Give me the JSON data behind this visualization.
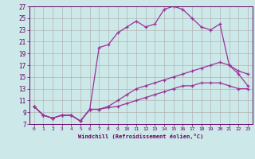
{
  "xlabel": "Windchill (Refroidissement éolien,°C)",
  "bg_color": "#cce8e8",
  "line_color": "#993399",
  "text_color": "#660066",
  "xlim": [
    -0.5,
    23.5
  ],
  "ylim": [
    7,
    27
  ],
  "xticks": [
    0,
    1,
    2,
    3,
    4,
    5,
    6,
    7,
    8,
    9,
    10,
    11,
    12,
    13,
    14,
    15,
    16,
    17,
    18,
    19,
    20,
    21,
    22,
    23
  ],
  "yticks": [
    7,
    9,
    11,
    13,
    15,
    17,
    19,
    21,
    23,
    25,
    27
  ],
  "line1_x": [
    0,
    1,
    2,
    3,
    4,
    5,
    6,
    7,
    8,
    9,
    10,
    11,
    12,
    13,
    14,
    15,
    16,
    17,
    18,
    19,
    20,
    21,
    22,
    23
  ],
  "line1_y": [
    10,
    8.5,
    8,
    8.5,
    8.5,
    7.5,
    9.5,
    20,
    20.5,
    22.5,
    23.5,
    24.5,
    23.5,
    24,
    26.5,
    27,
    26.5,
    25,
    23.5,
    23,
    24,
    17,
    16,
    15.5
  ],
  "line2_x": [
    0,
    1,
    2,
    3,
    4,
    5,
    6,
    7,
    8,
    9,
    10,
    11,
    12,
    13,
    14,
    15,
    16,
    17,
    18,
    19,
    20,
    21,
    22,
    23
  ],
  "line2_y": [
    10,
    8.5,
    8,
    8.5,
    8.5,
    7.5,
    9.5,
    9.5,
    10,
    11,
    12,
    13,
    13.5,
    14,
    14.5,
    15,
    15.5,
    16,
    16.5,
    17,
    17.5,
    17,
    15.5,
    13.5
  ],
  "line3_x": [
    0,
    1,
    2,
    3,
    4,
    5,
    6,
    7,
    8,
    9,
    10,
    11,
    12,
    13,
    14,
    15,
    16,
    17,
    18,
    19,
    20,
    21,
    22,
    23
  ],
  "line3_y": [
    10,
    8.5,
    8,
    8.5,
    8.5,
    7.5,
    9.5,
    9.5,
    9.8,
    10,
    10.5,
    11,
    11.5,
    12,
    12.5,
    13,
    13.5,
    13.5,
    14,
    14,
    14,
    13.5,
    13,
    13
  ]
}
